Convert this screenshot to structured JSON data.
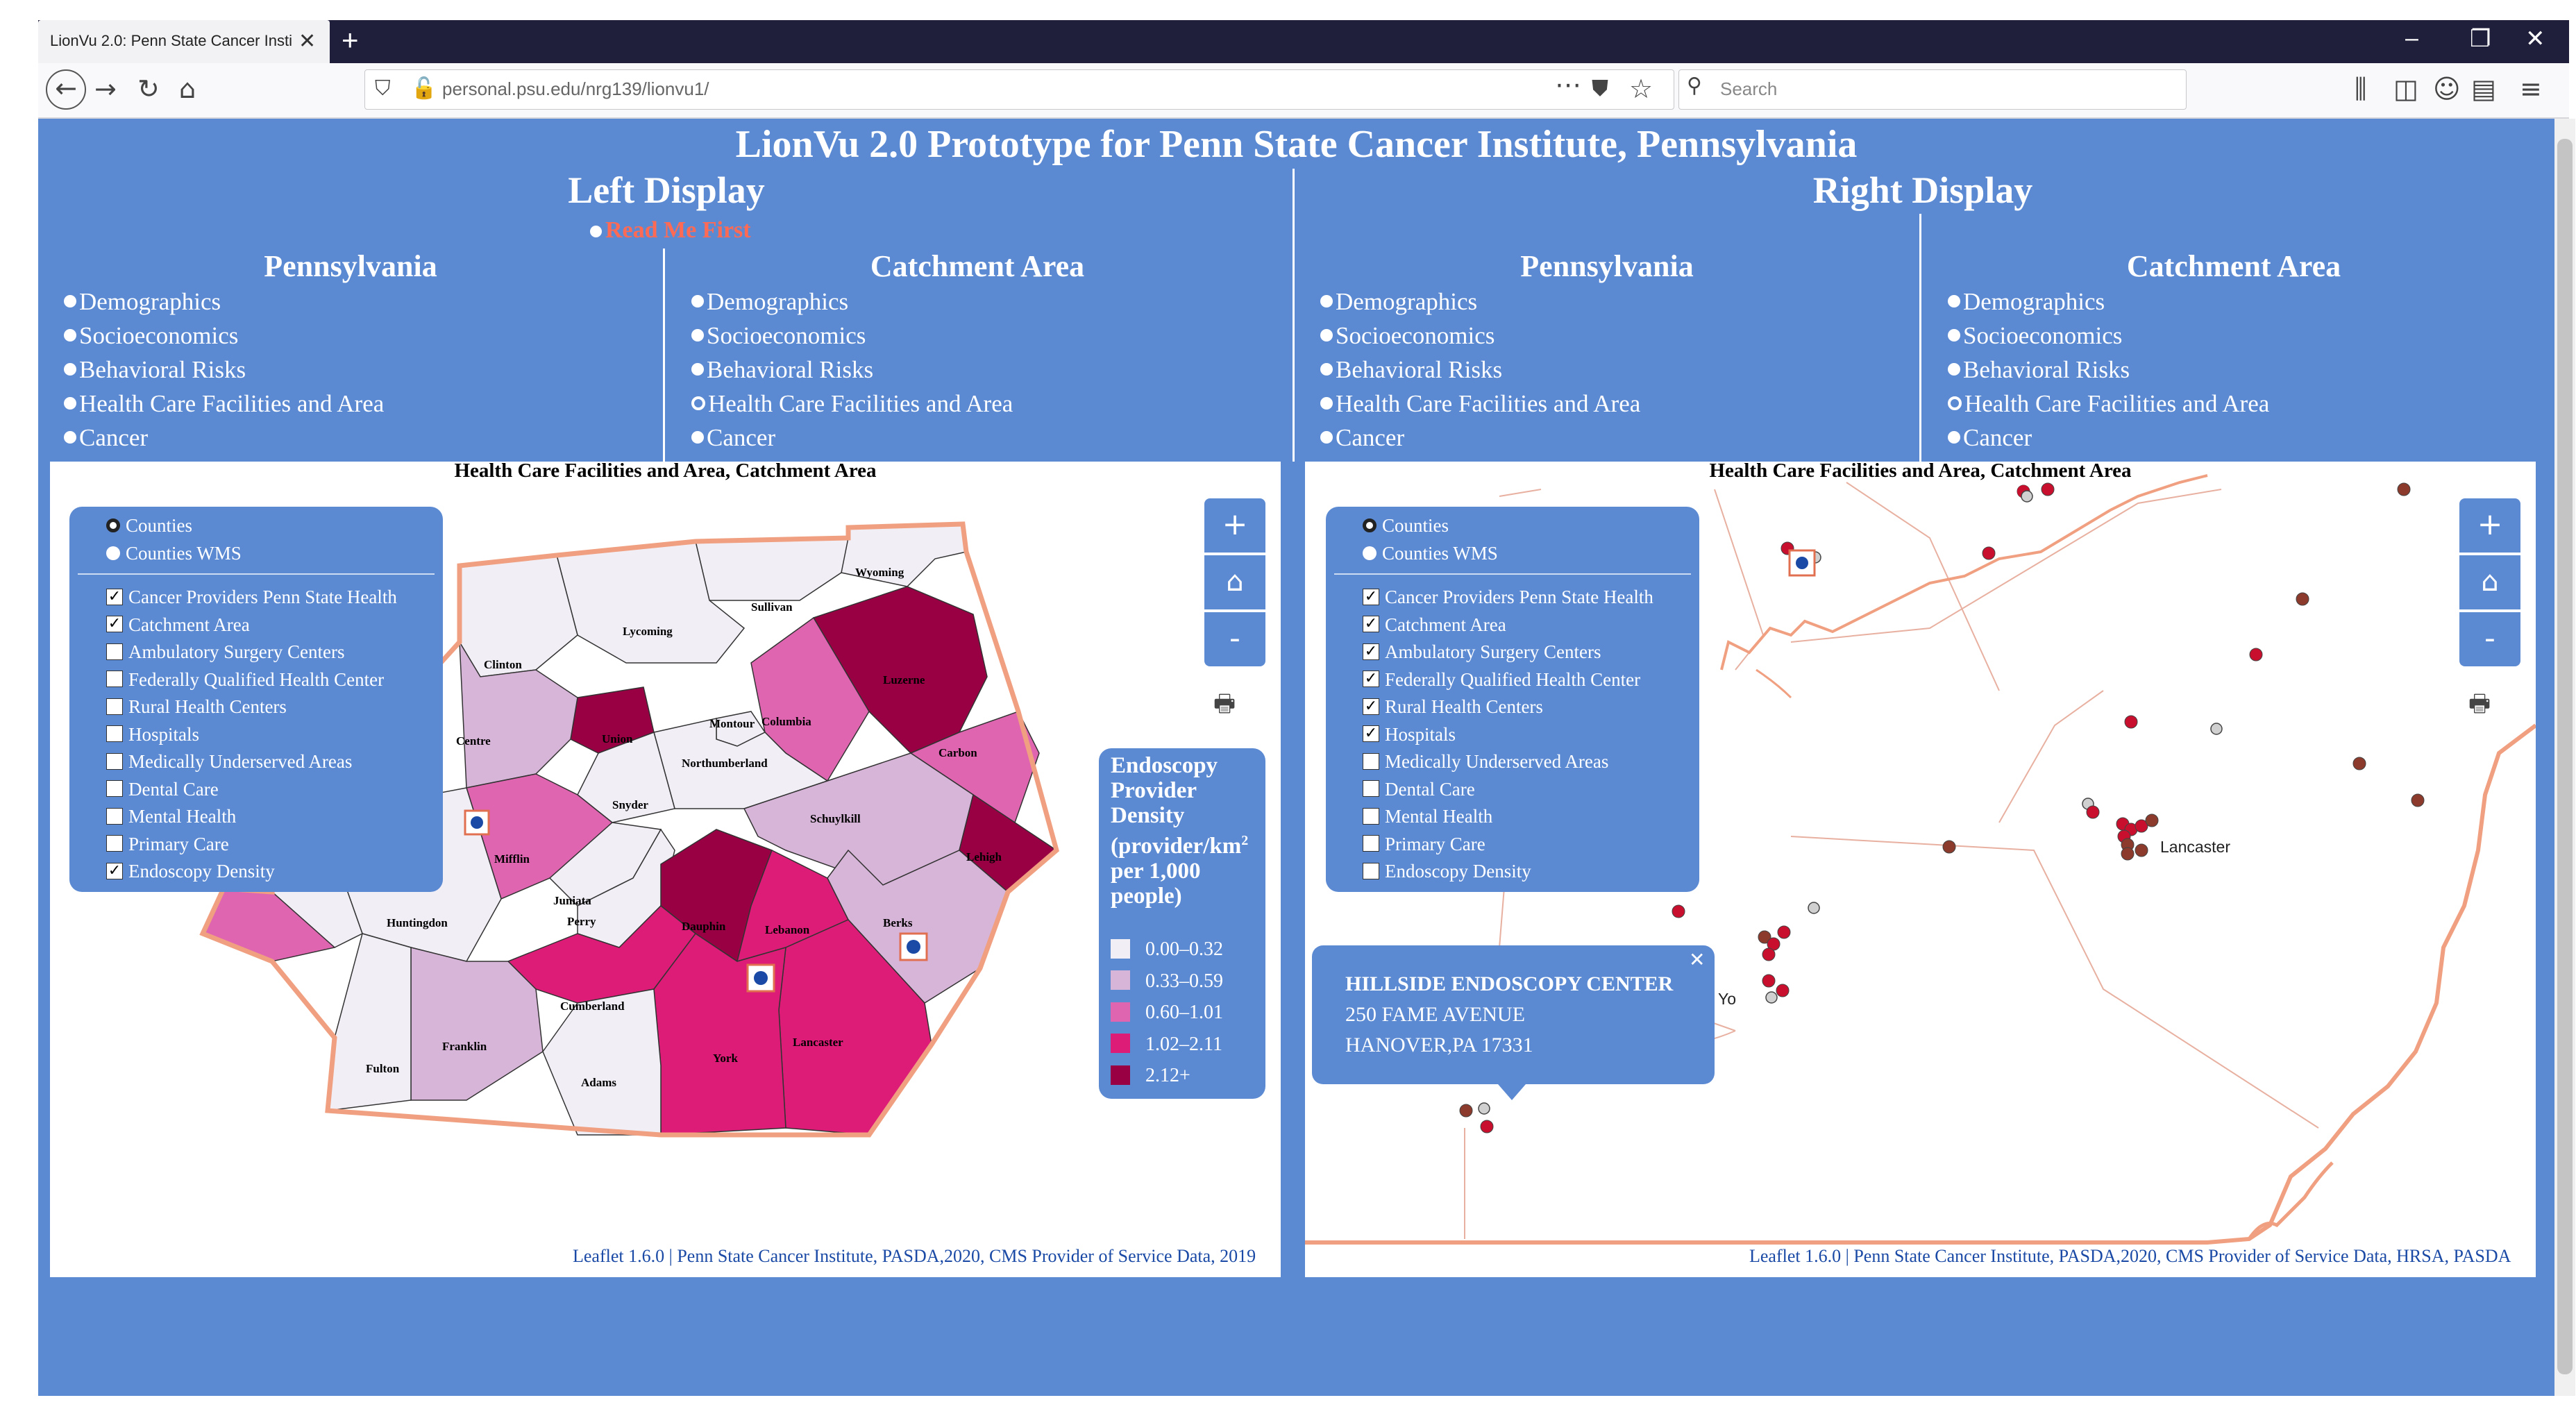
{
  "browser": {
    "tab_title": "LionVu 2.0: Penn State Cancer Insti",
    "url": "personal.psu.edu/nrg139/lionvu1/",
    "search_placeholder": "Search"
  },
  "page": {
    "title": "LionVu 2.0 Prototype for Penn State Cancer Institute, Pennsylvania",
    "left_display_title": "Left Display",
    "right_display_title": "Right Display",
    "read_me": "Read Me First"
  },
  "menus": {
    "left_pa": {
      "title": "Pennsylvania",
      "items": [
        "Demographics",
        "Socioeconomics",
        "Behavioral Risks",
        "Health Care Facilities and Area",
        "Cancer"
      ],
      "selected": -1
    },
    "left_ca": {
      "title": "Catchment Area",
      "items": [
        "Demographics",
        "Socioeconomics",
        "Behavioral Risks",
        "Health Care Facilities and Area",
        "Cancer"
      ],
      "selected": 3
    },
    "right_pa": {
      "title": "Pennsylvania",
      "items": [
        "Demographics",
        "Socioeconomics",
        "Behavioral Risks",
        "Health Care Facilities and Area",
        "Cancer"
      ],
      "selected": -1
    },
    "right_ca": {
      "title": "Catchment Area",
      "items": [
        "Demographics",
        "Socioeconomics",
        "Behavioral Risks",
        "Health Care Facilities and Area",
        "Cancer"
      ],
      "selected": 3
    }
  },
  "left_map": {
    "title": "Health Care Facilities and Area, Catchment Area",
    "base_layers": [
      {
        "label": "Counties",
        "selected": true
      },
      {
        "label": "Counties WMS",
        "selected": false
      }
    ],
    "overlays": [
      {
        "label": "Cancer Providers Penn State Health",
        "checked": true
      },
      {
        "label": "Catchment Area",
        "checked": true
      },
      {
        "label": "Ambulatory Surgery Centers",
        "checked": false
      },
      {
        "label": "Federally Qualified Health Center",
        "checked": false
      },
      {
        "label": "Rural Health Centers",
        "checked": false
      },
      {
        "label": "Hospitals",
        "checked": false
      },
      {
        "label": "Medically Underserved Areas",
        "checked": false
      },
      {
        "label": "Dental Care",
        "checked": false
      },
      {
        "label": "Mental Health",
        "checked": false
      },
      {
        "label": "Primary Care",
        "checked": false
      },
      {
        "label": "Endoscopy Density",
        "checked": true
      }
    ],
    "zoom_in": "+",
    "zoom_out": "-",
    "counties": [
      "Wyoming",
      "Sullivan",
      "Lycoming",
      "Clinton",
      "Luzerne",
      "Union",
      "Montour",
      "Columbia",
      "Centre",
      "Northumberland",
      "Carbon",
      "Snyder",
      "Schuylkill",
      "Mifflin",
      "Lehigh",
      "Juniata",
      "Huntingdon",
      "Perry",
      "Dauphin",
      "Lebanon",
      "Berks",
      "Cumberland",
      "Franklin",
      "Lancaster",
      "York",
      "Fulton",
      "Adams"
    ],
    "density_legend": {
      "title_line1": "Endoscopy",
      "title_line2": "Provider",
      "title_line3": "Density",
      "title_line4": "(provider/km",
      "title_sup": "2",
      "title_line5": "per 1,000",
      "title_line6": "people)",
      "classes": [
        {
          "label": "0.00–0.32",
          "color": "#f1eef6"
        },
        {
          "label": "0.33–0.59",
          "color": "#d7b5d8"
        },
        {
          "label": "0.60–1.01",
          "color": "#df65b0"
        },
        {
          "label": "1.02–2.11",
          "color": "#dd1c77"
        },
        {
          "label": "2.12+",
          "color": "#980043"
        }
      ]
    },
    "attribution_link": "Leaflet 1.6.0",
    "attribution": " | Penn State Cancer Institute, PASDA,2020, CMS Provider of Service Data, 2019"
  },
  "right_map": {
    "title": "Health Care Facilities and Area, Catchment Area",
    "base_layers": [
      {
        "label": "Counties",
        "selected": true
      },
      {
        "label": "Counties WMS",
        "selected": false
      }
    ],
    "overlays": [
      {
        "label": "Cancer Providers Penn State Health",
        "checked": true
      },
      {
        "label": "Catchment Area",
        "checked": true
      },
      {
        "label": "Ambulatory Surgery Centers",
        "checked": true
      },
      {
        "label": "Federally Qualified Health Center",
        "checked": true
      },
      {
        "label": "Rural Health Centers",
        "checked": true
      },
      {
        "label": "Hospitals",
        "checked": true
      },
      {
        "label": "Medically Underserved Areas",
        "checked": false
      },
      {
        "label": "Dental Care",
        "checked": false
      },
      {
        "label": "Mental Health",
        "checked": false
      },
      {
        "label": "Primary Care",
        "checked": false
      },
      {
        "label": "Endoscopy Density",
        "checked": false
      }
    ],
    "zoom_in": "+",
    "zoom_out": "-",
    "city_labels": [
      "Lancaster",
      "Yo"
    ],
    "popup": {
      "name": "HILLSIDE ENDOSCOPY CENTER",
      "address": "250 FAME AVENUE",
      "city": "HANOVER,PA 17331"
    },
    "attribution_link": "Leaflet 1.6.0",
    "attribution": " | Penn State Cancer Institute, PASDA,2020, CMS Provider of Service Data, HRSA, PASDA"
  },
  "colors": {
    "page_bg": "#5b8ad3",
    "marker_red": "#c8102e",
    "marker_brown": "#8b3a2b",
    "catchment_outline": "#f0a080"
  },
  "icons": [
    "back-arrow-icon",
    "forward-arrow-icon",
    "reload-icon",
    "home-icon",
    "shield-icon",
    "lock-off-icon",
    "more-icon",
    "pocket-icon",
    "star-icon",
    "search-icon",
    "library-icon",
    "sidebar-icon",
    "account-icon",
    "reader-icon",
    "hamburger-icon",
    "print-icon",
    "home-view-icon",
    "close-icon"
  ]
}
